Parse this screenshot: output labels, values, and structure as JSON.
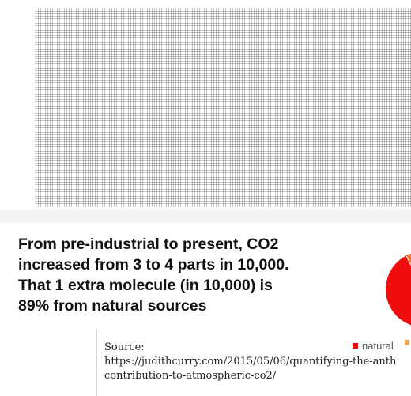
{
  "headline": {
    "lines": [
      "From pre-industrial to present, CO2",
      "increased from 3 to 4 parts in 10,000.",
      "That 1 extra molecule (in 10,000) is",
      "89% from natural sources"
    ]
  },
  "source": {
    "lines": [
      "Source:",
      "https://judithcurry.com/2015/05/06/quantifying-the-anth",
      "contribution-to-atmospheric-co2/"
    ]
  },
  "legend": {
    "natural_label": "natural",
    "natural_color": "#e01010",
    "other_color": "#ee8030"
  }
}
